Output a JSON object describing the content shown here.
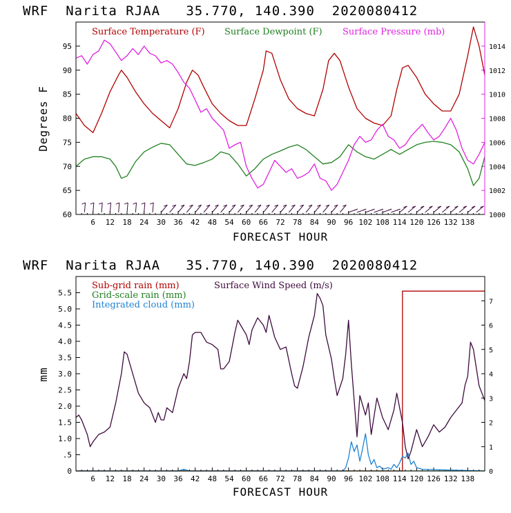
{
  "chart_data": [
    {
      "type": "line",
      "title": "WRF  Narita RJAA   35.770, 140.390  2020080412",
      "xlabel": "FORECAST HOUR",
      "ylabel": "Degrees F",
      "xlim": [
        0,
        144
      ],
      "ylim": [
        60,
        100
      ],
      "y2lim": [
        1000,
        1016
      ],
      "x_ticks": [
        6,
        12,
        18,
        24,
        30,
        36,
        42,
        48,
        54,
        60,
        66,
        72,
        78,
        84,
        90,
        96,
        102,
        108,
        114,
        120,
        126,
        132,
        138
      ],
      "x_tick_labels": [
        "6",
        "12",
        "18",
        "24",
        "30",
        "36",
        "42",
        "48",
        "54",
        "60",
        "66",
        "72",
        "78",
        "84",
        "90",
        "96",
        "102",
        "108",
        "114",
        "120",
        "126",
        "132",
        "138"
      ],
      "y_ticks": [
        60,
        65,
        70,
        75,
        80,
        85,
        90,
        95
      ],
      "y_tick_labels": [
        "60",
        "65",
        "70",
        "75",
        "80",
        "85",
        "90",
        "95"
      ],
      "y2_ticks": [
        1000,
        1002,
        1004,
        1006,
        1008,
        1010,
        1012,
        1014
      ],
      "y2_tick_labels": [
        "1000",
        "1002",
        "1004",
        "1006",
        "1008",
        "1010",
        "1012",
        "1014"
      ],
      "series": [
        {
          "name": "Surface Temperature (F)",
          "color": "#b00000",
          "axis": "left",
          "x": [
            0,
            3,
            6,
            9,
            12,
            15,
            16,
            18,
            21,
            24,
            27,
            30,
            33,
            36,
            39,
            41,
            43,
            45,
            48,
            51,
            54,
            57,
            60,
            63,
            66,
            67,
            69,
            72,
            75,
            78,
            81,
            84,
            87,
            89,
            91,
            93,
            96,
            99,
            102,
            105,
            108,
            111,
            113,
            115,
            117,
            120,
            123,
            126,
            129,
            132,
            135,
            138,
            140,
            142,
            144
          ],
          "values": [
            81,
            78.5,
            77,
            81,
            85.5,
            89,
            90,
            88.5,
            85.5,
            83,
            81,
            79.5,
            78,
            82,
            87.5,
            90,
            89,
            86.5,
            83,
            81,
            79.5,
            78.5,
            78.5,
            84,
            90,
            94,
            93.5,
            88,
            84,
            82,
            81,
            80.5,
            86,
            92,
            93.5,
            92,
            86.5,
            82,
            80,
            79,
            78.5,
            80.5,
            86,
            90.5,
            91,
            88.5,
            85,
            83,
            81.5,
            81.5,
            85,
            93,
            99,
            95,
            89
          ]
        },
        {
          "name": "Surface Dewpoint (F)",
          "color": "#208020",
          "axis": "left",
          "x": [
            0,
            3,
            6,
            9,
            12,
            14,
            16,
            18,
            21,
            24,
            27,
            30,
            33,
            36,
            39,
            42,
            45,
            48,
            51,
            54,
            57,
            60,
            63,
            66,
            69,
            72,
            75,
            78,
            81,
            84,
            87,
            90,
            93,
            96,
            99,
            102,
            105,
            108,
            111,
            114,
            117,
            120,
            123,
            126,
            129,
            132,
            135,
            138,
            140,
            142,
            144
          ],
          "values": [
            70,
            71.5,
            72,
            72,
            71.5,
            70,
            67.5,
            68,
            71,
            73,
            74,
            74.8,
            74.5,
            72.5,
            70.5,
            70.2,
            70.8,
            71.5,
            73,
            72.5,
            70.5,
            68,
            69.5,
            71.5,
            72.5,
            73.2,
            74,
            74.5,
            73.5,
            72,
            70.5,
            70.8,
            72,
            74.5,
            73,
            72,
            71.5,
            72.5,
            73.5,
            72.5,
            73.5,
            74.5,
            75,
            75.2,
            75,
            74.5,
            73,
            69.5,
            66,
            67.5,
            72
          ]
        },
        {
          "name": "Surface Pressure (mb)",
          "color": "#e020e0",
          "axis": "right",
          "x": [
            0,
            2,
            4,
            6,
            8,
            10,
            12,
            14,
            16,
            18,
            20,
            22,
            24,
            26,
            28,
            30,
            32,
            34,
            36,
            38,
            40,
            42,
            44,
            46,
            48,
            50,
            52,
            54,
            56,
            58,
            60,
            62,
            64,
            66,
            68,
            70,
            72,
            74,
            76,
            78,
            80,
            82,
            84,
            86,
            88,
            90,
            92,
            94,
            96,
            98,
            100,
            102,
            104,
            106,
            108,
            110,
            112,
            114,
            116,
            118,
            120,
            122,
            124,
            126,
            128,
            130,
            132,
            134,
            136,
            138,
            140,
            142,
            144
          ],
          "values": [
            1013,
            1013.2,
            1012.5,
            1013.3,
            1013.6,
            1014.5,
            1014.2,
            1013.5,
            1012.8,
            1013.2,
            1013.8,
            1013.3,
            1014,
            1013.4,
            1013.2,
            1012.6,
            1012.8,
            1012.5,
            1011.8,
            1011,
            1010.5,
            1009.5,
            1008.5,
            1008.8,
            1008,
            1007.5,
            1007,
            1005.5,
            1005.8,
            1006,
            1004,
            1003,
            1002.2,
            1002.5,
            1003.5,
            1004.5,
            1004,
            1003.5,
            1003.8,
            1003,
            1003.2,
            1003.5,
            1004.2,
            1003,
            1002.8,
            1002,
            1002.5,
            1003.5,
            1004.5,
            1005.8,
            1006.5,
            1006,
            1006.2,
            1007,
            1007.5,
            1006.5,
            1006.2,
            1005.5,
            1005.8,
            1006.5,
            1007,
            1007.5,
            1006.8,
            1006.2,
            1006.5,
            1007.2,
            1008,
            1007,
            1005.5,
            1004.5,
            1004.2,
            1005,
            1006
          ]
        }
      ],
      "wind_barbs": "row of wind barbs along the bottom of the plot, every 3 hours"
    },
    {
      "type": "line",
      "title": "WRF  Narita RJAA   35.770, 140.390  2020080412",
      "xlabel": "FORECAST HOUR",
      "ylabel": "mm",
      "xlim": [
        0,
        144
      ],
      "ylim": [
        0,
        6
      ],
      "y2lim": [
        0,
        8
      ],
      "x_ticks": [
        6,
        12,
        18,
        24,
        30,
        36,
        42,
        48,
        54,
        60,
        66,
        72,
        78,
        84,
        90,
        96,
        102,
        108,
        114,
        120,
        126,
        132,
        138
      ],
      "x_tick_labels": [
        "6",
        "12",
        "18",
        "24",
        "30",
        "36",
        "42",
        "48",
        "54",
        "60",
        "66",
        "72",
        "78",
        "84",
        "90",
        "96",
        "102",
        "108",
        "114",
        "120",
        "126",
        "132",
        "138"
      ],
      "y_ticks": [
        0,
        0.5,
        1,
        1.5,
        2,
        2.5,
        3,
        3.5,
        4,
        4.5,
        5,
        5.5
      ],
      "y_tick_labels": [
        "0",
        ".5",
        "1.0",
        "1.5",
        "2.0",
        "2.5",
        "3.0",
        "3.5",
        "4.0",
        "4.5",
        "5.0",
        "5.5"
      ],
      "y2_ticks": [
        0,
        1,
        2,
        3,
        4,
        5,
        6,
        7
      ],
      "y2_tick_labels": [
        "0",
        "1",
        "2",
        "3",
        "4",
        "5",
        "6",
        "7"
      ],
      "series": [
        {
          "name": "Sub-grid rain (mm)",
          "color": "#b00000",
          "axis": "left",
          "x": [
            0,
            112,
            114,
            115,
            115.01,
            144
          ],
          "values": [
            0,
            0,
            0,
            0,
            5.55,
            5.55
          ]
        },
        {
          "name": "Grid-scale rain (mm)",
          "color": "#208020",
          "axis": "left",
          "x": [
            0,
            144
          ],
          "values": [
            0,
            0
          ]
        },
        {
          "name": "Integrated cloud (mm)",
          "color": "#1e82d2",
          "axis": "left",
          "x": [
            0,
            36,
            38,
            40,
            42,
            94,
            95,
            96,
            97,
            98,
            99,
            100,
            101,
            102,
            103,
            104,
            105,
            106,
            107,
            108,
            110,
            111,
            112,
            113,
            114,
            115,
            116,
            117,
            118,
            119,
            120,
            122,
            144
          ],
          "values": [
            0,
            0,
            0.05,
            0,
            0,
            0,
            0.1,
            0.4,
            0.9,
            0.6,
            0.8,
            0.3,
            0.7,
            1.15,
            0.5,
            0.2,
            0.35,
            0.1,
            0.15,
            0.05,
            0.1,
            0.05,
            0.2,
            0.1,
            0.25,
            0.45,
            0.4,
            0.55,
            0.2,
            0.3,
            0.1,
            0.05,
            0
          ]
        },
        {
          "name": "Surface Wind Speed (m/s)",
          "color": "#3c0a3c",
          "axis": "right",
          "x": [
            0,
            1,
            2,
            4,
            5,
            6,
            8,
            10,
            12,
            14,
            16,
            17,
            18,
            20,
            22,
            24,
            26,
            28,
            29,
            30,
            31,
            32,
            34,
            36,
            38,
            39,
            40,
            41,
            42,
            44,
            46,
            48,
            50,
            51,
            52,
            54,
            56,
            57,
            58,
            60,
            61,
            62,
            64,
            66,
            67,
            68,
            70,
            72,
            74,
            76,
            77,
            78,
            80,
            82,
            84,
            85,
            86,
            87,
            88,
            90,
            91,
            92,
            94,
            95,
            96,
            97,
            98,
            99,
            100,
            101,
            102,
            103,
            104,
            106,
            108,
            110,
            112,
            113,
            114,
            115,
            116,
            117,
            118,
            120,
            122,
            124,
            126,
            128,
            130,
            132,
            134,
            136,
            137,
            138,
            139,
            140,
            142,
            144
          ],
          "values": [
            2.2,
            2.3,
            2.1,
            1.5,
            1.0,
            1.2,
            1.5,
            1.6,
            1.8,
            2.8,
            4.0,
            4.9,
            4.8,
            4.0,
            3.2,
            2.8,
            2.6,
            2.0,
            2.4,
            2.1,
            2.1,
            2.6,
            2.4,
            3.4,
            4.0,
            3.8,
            4.5,
            5.6,
            5.7,
            5.7,
            5.3,
            5.2,
            5.0,
            4.2,
            4.2,
            4.5,
            5.7,
            6.2,
            6.0,
            5.6,
            5.2,
            5.8,
            6.3,
            6.0,
            5.7,
            6.4,
            5.5,
            5.0,
            5.1,
            4.0,
            3.5,
            3.4,
            4.3,
            5.5,
            6.4,
            7.3,
            7.1,
            6.8,
            5.6,
            4.6,
            3.8,
            3.1,
            3.8,
            4.8,
            6.2,
            4.4,
            2.9,
            1.4,
            3.1,
            2.7,
            2.3,
            2.8,
            1.5,
            3.0,
            2.2,
            1.7,
            2.5,
            3.2,
            2.6,
            2.0,
            1.0,
            0.5,
            0.8,
            1.7,
            1.0,
            1.4,
            1.9,
            1.6,
            1.8,
            2.2,
            2.5,
            2.8,
            3.5,
            3.9,
            5.3,
            5.0,
            3.5,
            2.9
          ]
        }
      ]
    }
  ]
}
